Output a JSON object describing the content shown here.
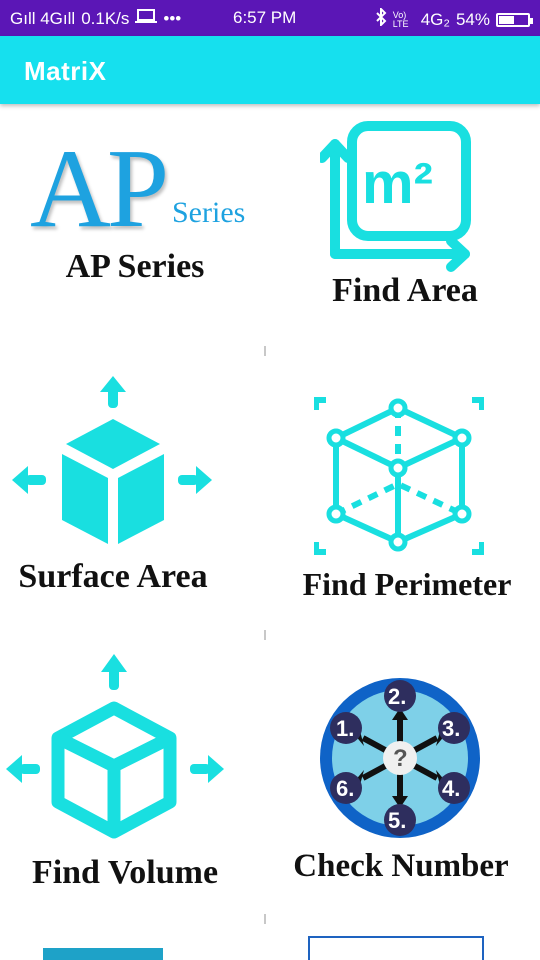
{
  "status_bar": {
    "signal_left": "Gıll 4Gıll",
    "speed": "0.1K/s",
    "dots": "•••",
    "time": "6:57 PM",
    "volte": "Vo) LTE",
    "network": "4G₂",
    "battery": "54%",
    "battery_level": 0.54
  },
  "app_bar": {
    "title": "MatriX"
  },
  "logo": {
    "big": "AP",
    "small": "Series"
  },
  "tiles": [
    {
      "label": "AP  Series",
      "icon": "ap-series-icon"
    },
    {
      "label": "Find Area",
      "icon": "area-icon"
    },
    {
      "label": "Surface Area",
      "icon": "surface-area-icon"
    },
    {
      "label": "Find Perimeter",
      "icon": "perimeter-icon"
    },
    {
      "label": "Find Volume",
      "icon": "volume-icon"
    },
    {
      "label": "Check Number",
      "icon": "check-number-icon"
    }
  ],
  "m2_icon_text": "m²",
  "check_number_digits": [
    "1.",
    "2.",
    "3.",
    "4.",
    "5.",
    "6.",
    "?"
  ],
  "colors": {
    "status_bar": "#5b16b6",
    "app_bar": "#16e0ee",
    "accent": "#19dfe0"
  }
}
